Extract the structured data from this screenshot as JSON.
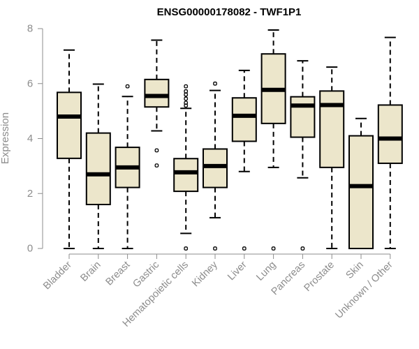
{
  "chart_data": {
    "type": "boxplot",
    "title": "ENSG00000178082 - TWF1P1",
    "xlabel": "",
    "ylabel": "Expression",
    "ylim": [
      0,
      8
    ],
    "yticks": [
      0,
      2,
      4,
      6,
      8
    ],
    "grid": false,
    "categories": [
      "Bladder",
      "Brain",
      "Breast",
      "Gastric",
      "Hematopoietic cells",
      "Kidney",
      "Liver",
      "Lung",
      "Pancreas",
      "Prostate",
      "Skin",
      "Unknown / Other"
    ],
    "series": [
      {
        "name": "Bladder",
        "whisker_low": 0,
        "q1": 3.28,
        "median": 4.8,
        "q3": 5.68,
        "whisker_high": 7.22,
        "outliers": []
      },
      {
        "name": "Brain",
        "whisker_low": 0,
        "q1": 1.6,
        "median": 2.7,
        "q3": 4.2,
        "whisker_high": 5.98,
        "outliers": []
      },
      {
        "name": "Breast",
        "whisker_low": 0,
        "q1": 2.22,
        "median": 2.95,
        "q3": 3.68,
        "whisker_high": 5.53,
        "outliers": [
          5.9
        ]
      },
      {
        "name": "Gastric",
        "whisker_low": 4.28,
        "q1": 5.15,
        "median": 5.55,
        "q3": 6.15,
        "whisker_high": 7.58,
        "outliers": [
          3.57,
          3.02
        ]
      },
      {
        "name": "Hematopoietic cells",
        "whisker_low": 0.55,
        "q1": 2.08,
        "median": 2.77,
        "q3": 3.27,
        "whisker_high": 5.1,
        "outliers": [
          5.9,
          5.72,
          5.6,
          5.45,
          5.3,
          5.2,
          0
        ]
      },
      {
        "name": "Kidney",
        "whisker_low": 1.12,
        "q1": 2.22,
        "median": 3.0,
        "q3": 3.62,
        "whisker_high": 5.75,
        "outliers": [
          6.0,
          0
        ]
      },
      {
        "name": "Liver",
        "whisker_low": 2.8,
        "q1": 3.9,
        "median": 4.83,
        "q3": 5.48,
        "whisker_high": 6.48,
        "outliers": [
          0
        ]
      },
      {
        "name": "Lung",
        "whisker_low": 2.95,
        "q1": 4.55,
        "median": 5.77,
        "q3": 7.08,
        "whisker_high": 7.95,
        "outliers": [
          0
        ]
      },
      {
        "name": "Pancreas",
        "whisker_low": 2.57,
        "q1": 4.05,
        "median": 5.2,
        "q3": 5.52,
        "whisker_high": 6.83,
        "outliers": [
          0
        ]
      },
      {
        "name": "Prostate",
        "whisker_low": 0,
        "q1": 2.95,
        "median": 5.22,
        "q3": 5.73,
        "whisker_high": 6.6,
        "outliers": []
      },
      {
        "name": "Skin",
        "whisker_low": 0,
        "q1": 0,
        "median": 2.27,
        "q3": 4.1,
        "whisker_high": 4.73,
        "outliers": []
      },
      {
        "name": "Unknown / Other",
        "whisker_low": 0,
        "q1": 3.1,
        "median": 4.0,
        "q3": 5.22,
        "whisker_high": 7.68,
        "outliers": []
      }
    ]
  }
}
